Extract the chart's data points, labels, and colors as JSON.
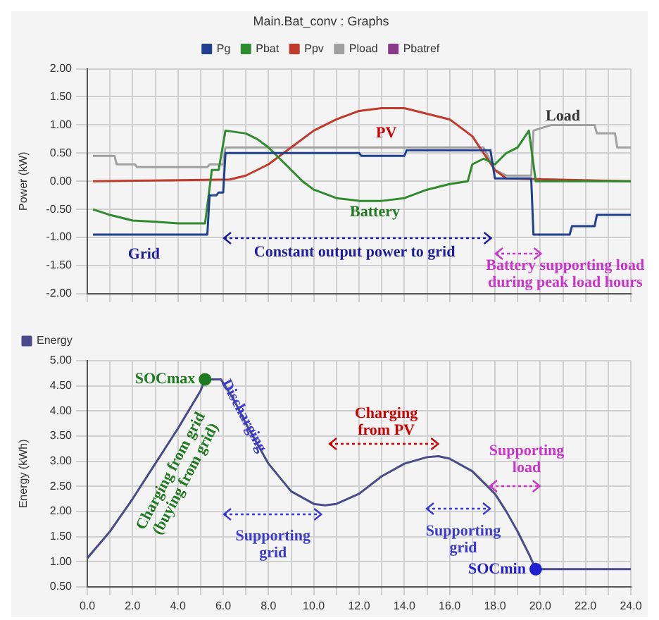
{
  "chart_data": [
    {
      "type": "line",
      "title": "Main.Bat_conv : Graphs",
      "ylabel": "Power (kW)",
      "xlim": [
        0,
        24
      ],
      "xticks": [
        0,
        1,
        2,
        3,
        4,
        5,
        6,
        7,
        8,
        9,
        10,
        11,
        12,
        13,
        14,
        15,
        16,
        17,
        18,
        19,
        20,
        21,
        22,
        23,
        24
      ],
      "ylim": [
        -2,
        2
      ],
      "yticks": [
        {
          "value": -2,
          "label": "-2.00"
        },
        {
          "value": -1.5,
          "label": "-1.50"
        },
        {
          "value": -1,
          "label": "-1.00"
        },
        {
          "value": -0.5,
          "label": "-0.50"
        },
        {
          "value": 0,
          "label": "0.00"
        },
        {
          "value": 0.5,
          "label": "0.50"
        },
        {
          "value": 1,
          "label": "1.00"
        },
        {
          "value": 1.5,
          "label": "1.50"
        },
        {
          "value": 2,
          "label": "2.00"
        }
      ],
      "tick_labels": "y",
      "grid": true,
      "legend": "top",
      "marker": "none",
      "line_style": "solid",
      "series": [
        {
          "name": "Pg",
          "color": "#1f3f8f",
          "x": [
            0.25,
            5.3,
            5.4,
            5.7,
            5.8,
            6.0,
            6.1,
            12,
            12.1,
            14,
            14.1,
            17.8,
            18.0,
            19.6,
            19.7,
            21.3,
            21.4,
            22.4,
            22.5,
            24
          ],
          "values": [
            -0.95,
            -0.95,
            -0.25,
            -0.25,
            -0.2,
            -0.2,
            0.5,
            0.5,
            0.45,
            0.45,
            0.55,
            0.55,
            0.05,
            0.05,
            -0.95,
            -0.95,
            -0.8,
            -0.8,
            -0.6,
            -0.6
          ]
        },
        {
          "name": "Pbat",
          "color": "#2e8b2e",
          "x": [
            0.25,
            1,
            2,
            3,
            4,
            5.2,
            5.5,
            5.8,
            6.1,
            7.0,
            7.5,
            8,
            8.5,
            9,
            9.5,
            10,
            11,
            12,
            13,
            14,
            15,
            16,
            16.8,
            17.0,
            17.5,
            18,
            18.5,
            19,
            19.5,
            19.8,
            24
          ],
          "values": [
            -0.5,
            -0.6,
            -0.7,
            -0.72,
            -0.75,
            -0.75,
            0.2,
            0.2,
            0.9,
            0.85,
            0.75,
            0.6,
            0.4,
            0.2,
            0.0,
            -0.15,
            -0.3,
            -0.35,
            -0.35,
            -0.3,
            -0.15,
            -0.05,
            0.0,
            0.3,
            0.4,
            0.3,
            0.5,
            0.6,
            0.9,
            0.0,
            0.0
          ]
        },
        {
          "name": "Ppv",
          "color": "#c0392b",
          "x": [
            0.25,
            6.3,
            7,
            8,
            9,
            10,
            11,
            12,
            13,
            14,
            15,
            16,
            17,
            17.5,
            18,
            18.5,
            24
          ],
          "values": [
            0,
            0.03,
            0.1,
            0.3,
            0.6,
            0.9,
            1.1,
            1.25,
            1.3,
            1.3,
            1.2,
            1.1,
            0.8,
            0.5,
            0.2,
            0.05,
            0
          ]
        },
        {
          "name": "Pload",
          "color": "#a0a0a0",
          "x": [
            0.25,
            1.2,
            1.3,
            2.1,
            2.2,
            5.3,
            5.4,
            6.0,
            6.1,
            17.5,
            18.0,
            18.5,
            19.6,
            19.7,
            20.5,
            22.4,
            22.5,
            23.3,
            23.4,
            24
          ],
          "values": [
            0.45,
            0.45,
            0.3,
            0.3,
            0.25,
            0.25,
            0.3,
            0.3,
            0.6,
            0.6,
            0.2,
            0.1,
            0.1,
            0.9,
            1.0,
            1.0,
            0.85,
            0.85,
            0.6,
            0.6
          ]
        },
        {
          "name": "Pbatref",
          "color": "#8b3a8b"
        }
      ],
      "annotations": [
        "Grid",
        "Constant output power to grid",
        "Battery",
        "PV",
        "Load",
        "Battery supporting load\nduring peak load hours"
      ]
    },
    {
      "type": "line",
      "ylabel": "Energy (kWh)",
      "xlim": [
        0,
        24
      ],
      "xticks": [
        {
          "value": 0,
          "label": "0.0"
        },
        {
          "value": 1,
          "label": null
        },
        {
          "value": 2,
          "label": "2.0"
        },
        {
          "value": 3,
          "label": null
        },
        {
          "value": 4,
          "label": "4.0"
        },
        {
          "value": 5,
          "label": null
        },
        {
          "value": 6,
          "label": "6.0"
        },
        {
          "value": 7,
          "label": null
        },
        {
          "value": 8,
          "label": "8.0"
        },
        {
          "value": 9,
          "label": null
        },
        {
          "value": 10,
          "label": "10.0"
        },
        {
          "value": 11,
          "label": null
        },
        {
          "value": 12,
          "label": "12.0"
        },
        {
          "value": 13,
          "label": null
        },
        {
          "value": 14,
          "label": "14.0"
        },
        {
          "value": 15,
          "label": null
        },
        {
          "value": 16,
          "label": "16.0"
        },
        {
          "value": 17,
          "label": null
        },
        {
          "value": 18,
          "label": "18.0"
        },
        {
          "value": 19,
          "label": null
        },
        {
          "value": 20,
          "label": "20.0"
        },
        {
          "value": 21,
          "label": null
        },
        {
          "value": 22,
          "label": "22.0"
        },
        {
          "value": 23,
          "label": null
        },
        {
          "value": 24,
          "label": "24.0"
        }
      ],
      "ylim": [
        0.5,
        5
      ],
      "yticks": [
        {
          "value": 0.5,
          "label": "0.50"
        },
        {
          "value": 1,
          "label": "1.00"
        },
        {
          "value": 1.5,
          "label": "1.50"
        },
        {
          "value": 2,
          "label": "2.00"
        },
        {
          "value": 2.5,
          "label": "2.50"
        },
        {
          "value": 3,
          "label": "3.00"
        },
        {
          "value": 3.5,
          "label": "3.50"
        },
        {
          "value": 4,
          "label": "4.00"
        },
        {
          "value": 4.5,
          "label": "4.50"
        },
        {
          "value": 5,
          "label": "5.00"
        }
      ],
      "grid": true,
      "legend": "top left",
      "marker": "none",
      "line_style": "solid",
      "series": [
        {
          "name": "Energy",
          "color": "#4a4a8a",
          "x": [
            0,
            1,
            2,
            3,
            4,
            5,
            5.2,
            5.9,
            6.5,
            7,
            8,
            9,
            10,
            10.5,
            11,
            12,
            13,
            14,
            15,
            15.5,
            16,
            17,
            18,
            18.5,
            19,
            19.5,
            19.8,
            24
          ],
          "values": [
            1.07,
            1.6,
            2.25,
            2.95,
            3.65,
            4.4,
            4.63,
            4.63,
            4.2,
            3.75,
            2.95,
            2.4,
            2.15,
            2.12,
            2.15,
            2.35,
            2.7,
            2.95,
            3.08,
            3.1,
            3.05,
            2.8,
            2.35,
            2.0,
            1.6,
            1.15,
            0.85,
            0.85
          ]
        }
      ],
      "annotations": [
        {
          "text": "SOCmax",
          "x": 5.2,
          "y": 4.63
        },
        "Charging from grid\n(buying from grid)",
        "Discharging",
        "Charging\nfrom PV",
        "Supporting\ngrid",
        "Supporting\nload",
        "Supporting\ngrid",
        {
          "text": "SOCmin",
          "x": 19.8,
          "y": 0.85
        }
      ]
    }
  ]
}
